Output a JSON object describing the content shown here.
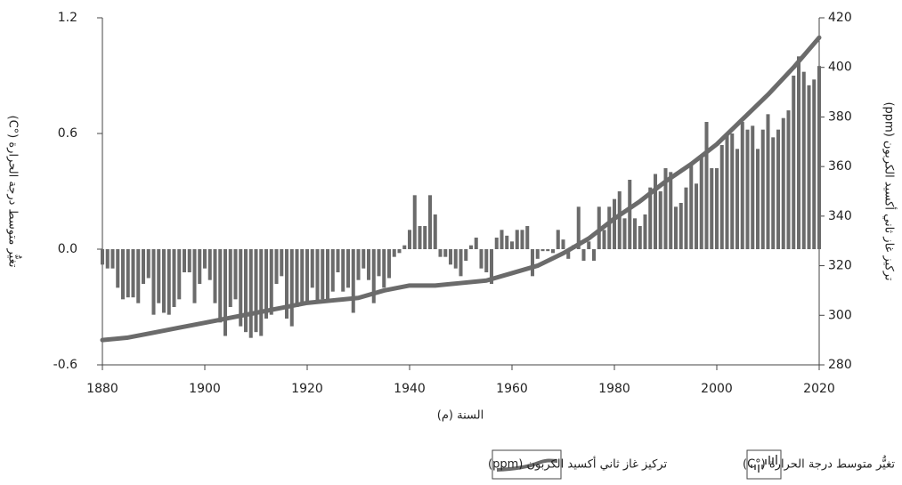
{
  "chart_data": {
    "type": "bar",
    "xlabel": "السنة (م)",
    "ylabel": "تغيُّر متوسط درجة الحرارة (°C)",
    "y2label": "تركيز غاز ثاني أكسيد الكربون (ppm)",
    "xlim": [
      1880,
      2020
    ],
    "xticks": [
      1880,
      1900,
      1920,
      1940,
      1960,
      1980,
      2000,
      2020
    ],
    "ylim": [
      -0.6,
      1.2
    ],
    "yticks": [
      -0.6,
      {
        "value": 0,
        "label": "0.0"
      },
      0.6,
      1.2
    ],
    "y2lim": [
      280,
      420
    ],
    "y2ticks": [
      280,
      300,
      320,
      340,
      360,
      380,
      400,
      420
    ],
    "series": [
      {
        "name": "تغيُّر متوسط درجة الحرارة (°C)",
        "type": "bar",
        "color": "#6b6b6b",
        "x": [
          1880,
          1881,
          1882,
          1883,
          1884,
          1885,
          1886,
          1887,
          1888,
          1889,
          1890,
          1891,
          1892,
          1893,
          1894,
          1895,
          1896,
          1897,
          1898,
          1899,
          1900,
          1901,
          1902,
          1903,
          1904,
          1905,
          1906,
          1907,
          1908,
          1909,
          1910,
          1911,
          1912,
          1913,
          1914,
          1915,
          1916,
          1917,
          1918,
          1919,
          1920,
          1921,
          1922,
          1923,
          1924,
          1925,
          1926,
          1927,
          1928,
          1929,
          1930,
          1931,
          1932,
          1933,
          1934,
          1935,
          1936,
          1937,
          1938,
          1939,
          1940,
          1941,
          1942,
          1943,
          1944,
          1945,
          1946,
          1947,
          1948,
          1949,
          1950,
          1951,
          1952,
          1953,
          1954,
          1955,
          1956,
          1957,
          1958,
          1959,
          1960,
          1961,
          1962,
          1963,
          1964,
          1965,
          1966,
          1967,
          1968,
          1969,
          1970,
          1971,
          1972,
          1973,
          1974,
          1975,
          1976,
          1977,
          1978,
          1979,
          1980,
          1981,
          1982,
          1983,
          1984,
          1985,
          1986,
          1987,
          1988,
          1989,
          1990,
          1991,
          1992,
          1993,
          1994,
          1995,
          1996,
          1997,
          1998,
          1999,
          2000,
          2001,
          2002,
          2003,
          2004,
          2005,
          2006,
          2007,
          2008,
          2009,
          2010,
          2011,
          2012,
          2013,
          2014,
          2015,
          2016,
          2017,
          2018,
          2019,
          2020
        ],
        "values": [
          -0.08,
          -0.1,
          -0.1,
          -0.2,
          -0.26,
          -0.25,
          -0.25,
          -0.28,
          -0.18,
          -0.15,
          -0.34,
          -0.28,
          -0.33,
          -0.34,
          -0.3,
          -0.26,
          -0.12,
          -0.12,
          -0.28,
          -0.18,
          -0.1,
          -0.16,
          -0.28,
          -0.38,
          -0.45,
          -0.3,
          -0.26,
          -0.4,
          -0.43,
          -0.46,
          -0.43,
          -0.45,
          -0.36,
          -0.34,
          -0.18,
          -0.14,
          -0.36,
          -0.4,
          -0.3,
          -0.28,
          -0.27,
          -0.2,
          -0.28,
          -0.26,
          -0.27,
          -0.22,
          -0.12,
          -0.22,
          -0.2,
          -0.33,
          -0.16,
          -0.1,
          -0.16,
          -0.28,
          -0.14,
          -0.2,
          -0.15,
          -0.04,
          -0.02,
          0.02,
          0.1,
          0.28,
          0.12,
          0.12,
          0.28,
          0.18,
          -0.04,
          -0.04,
          -0.08,
          -0.1,
          -0.14,
          -0.06,
          0.02,
          0.06,
          -0.1,
          -0.12,
          -0.18,
          0.06,
          0.1,
          0.07,
          0.04,
          0.1,
          0.1,
          0.12,
          -0.14,
          -0.05,
          -0.01,
          -0.01,
          -0.02,
          0.1,
          0.05,
          -0.05,
          0.02,
          0.22,
          -0.06,
          0.04,
          -0.06,
          0.22,
          0.1,
          0.22,
          0.26,
          0.3,
          0.16,
          0.36,
          0.16,
          0.12,
          0.18,
          0.32,
          0.39,
          0.3,
          0.42,
          0.4,
          0.22,
          0.24,
          0.32,
          0.44,
          0.34,
          0.48,
          0.66,
          0.42,
          0.42,
          0.54,
          0.6,
          0.6,
          0.52,
          0.66,
          0.62,
          0.64,
          0.52,
          0.62,
          0.7,
          0.58,
          0.62,
          0.68,
          0.72,
          0.9,
          1.0,
          0.92,
          0.85,
          0.88,
          0.95
        ]
      },
      {
        "name": "تركيز غاز ثاني أكسيد الكربون (ppm)",
        "type": "line",
        "axis": "y2",
        "color": "#6b6b6b",
        "x": [
          1880,
          1885,
          1890,
          1895,
          1900,
          1905,
          1910,
          1915,
          1920,
          1925,
          1930,
          1935,
          1940,
          1945,
          1950,
          1955,
          1960,
          1965,
          1970,
          1975,
          1980,
          1985,
          1990,
          1995,
          2000,
          2005,
          2010,
          2015,
          2020
        ],
        "values": [
          290,
          291,
          293,
          295,
          297,
          299,
          301,
          303,
          305,
          306,
          307,
          310,
          312,
          312,
          313,
          314,
          317,
          320,
          325,
          331,
          339,
          346,
          354,
          361,
          369,
          379,
          389,
          400,
          412
        ]
      }
    ]
  }
}
